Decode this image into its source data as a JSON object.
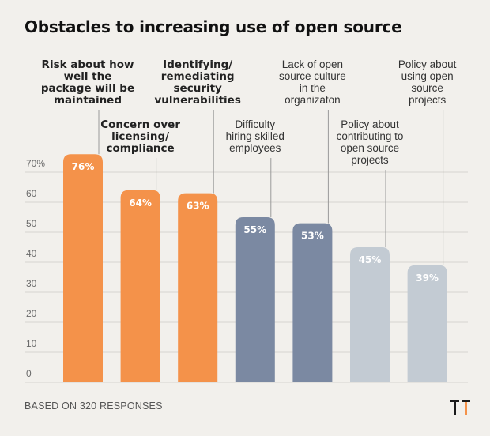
{
  "title": "Obstacles to increasing use of open source",
  "footer": "BASED ON 320 RESPONSES",
  "colors": {
    "orange": "#f4924a",
    "slate": "#7b89a2",
    "light": "#c3cbd3",
    "grid": "#d7d4cf",
    "tick": "#6a6a6a"
  },
  "chart_data": {
    "type": "bar",
    "categories": [
      "Risk about how well the package will be maintained",
      "Concern over licensing/ compliance",
      "Identifying/ remediating security vulnerabilities",
      "Difficulty hiring skilled employees",
      "Lack of open source culture in the organizaton",
      "Policy about contributing to open source projects",
      "Policy about using open source projects"
    ],
    "category_lines": [
      [
        "Risk about how",
        "well the",
        "package will be",
        "maintained"
      ],
      [
        "Concern over",
        "licensing/",
        "compliance"
      ],
      [
        "Identifying/",
        "remediating",
        "security",
        "vulnerabilities"
      ],
      [
        "Difficulty",
        "hiring skilled",
        "employees"
      ],
      [
        "Lack of open",
        "source culture",
        "in the",
        "organizaton"
      ],
      [
        "Policy about",
        "contributing to",
        "open source",
        "projects"
      ],
      [
        "Policy about",
        "using open",
        "source",
        "projects"
      ]
    ],
    "label_bold": [
      true,
      true,
      true,
      false,
      false,
      false,
      false
    ],
    "values": [
      76,
      64,
      63,
      55,
      53,
      45,
      39
    ],
    "value_labels": [
      "76%",
      "64%",
      "63%",
      "55%",
      "53%",
      "45%",
      "39%"
    ],
    "bar_colors": [
      "#f4924a",
      "#f4924a",
      "#f4924a",
      "#7b89a2",
      "#7b89a2",
      "#c3cbd3",
      "#c3cbd3"
    ],
    "yticks": [
      0,
      10,
      20,
      30,
      40,
      50,
      60,
      70
    ],
    "ytick_labels": [
      "0",
      "10",
      "20",
      "30",
      "40",
      "50",
      "60",
      "70%"
    ],
    "ylim": [
      0,
      80
    ],
    "grid": true,
    "xlabel": "",
    "ylabel": ""
  }
}
